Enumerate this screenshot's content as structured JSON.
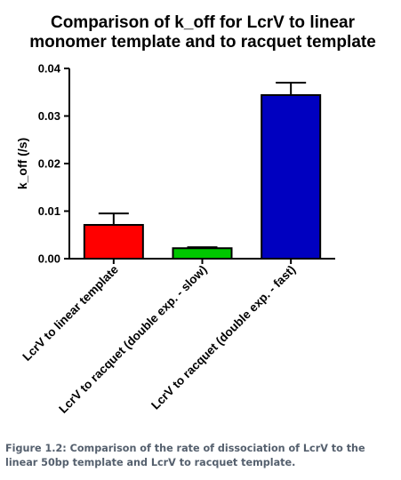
{
  "chart_data": {
    "type": "bar",
    "title_lines": [
      "Comparison of k_off for LcrV to linear",
      "monomer template and to racquet template"
    ],
    "ylabel": "k_off (/s)",
    "xlabel": "",
    "ylim": [
      0,
      0.04
    ],
    "yticks": [
      "0.00",
      "0.01",
      "0.02",
      "0.03",
      "0.04"
    ],
    "categories": [
      "LcrV to linear template",
      "LcrV to racquet (double exp. - slow)",
      "LcrV to racquet (double exp. - fast)"
    ],
    "values": [
      0.0071,
      0.0022,
      0.0344
    ],
    "errors": [
      0.0024,
      0.0002,
      0.0026
    ],
    "colors": [
      "#ff0000",
      "#00c800",
      "#0000c0"
    ],
    "grid": false,
    "legend": "none"
  },
  "caption": "Figure 1.2: Comparison of the rate of dissociation of LcrV to the linear 50bp template and LcrV to racquet template."
}
